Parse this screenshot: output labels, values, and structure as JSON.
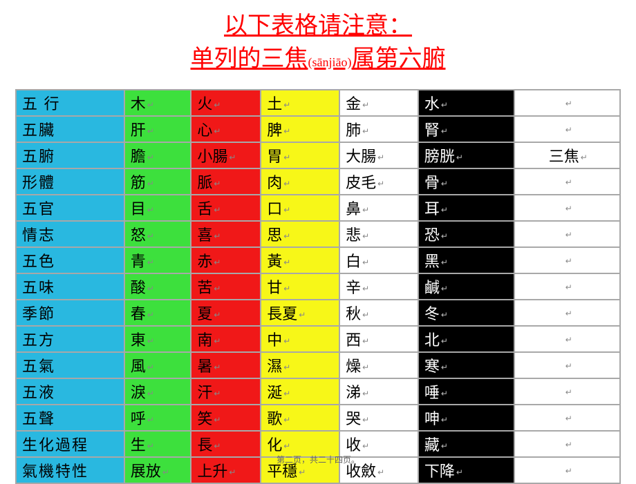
{
  "title": {
    "line1": "以下表格请注意：",
    "line2_pre": "单列的三焦",
    "line2_pinyin": "(sānjiāo)",
    "line2_post": "属第六腑"
  },
  "table": {
    "colors": {
      "label": "#29b8e0",
      "wood": "#3de03d",
      "fire": "#f01818",
      "earth": "#f7f718",
      "metal": "#ffffff",
      "water": "#000000",
      "extra": "#ffffff",
      "water_text": "#ffffff",
      "grid": "#a8a8a8"
    },
    "column_keys": [
      "label",
      "wood",
      "fire",
      "earth",
      "metal",
      "water",
      "extra"
    ],
    "rows": [
      {
        "label": "五 行",
        "wood": "木",
        "fire": "火",
        "earth": "土",
        "metal": "金",
        "water": "水",
        "extra": ""
      },
      {
        "label": "五臟",
        "wood": "肝",
        "fire": "心",
        "earth": "脾",
        "metal": "肺",
        "water": "腎",
        "extra": ""
      },
      {
        "label": "五腑",
        "wood": "膽",
        "fire": "小腸",
        "earth": "胃",
        "metal": "大腸",
        "water": "膀胱",
        "extra": "三焦"
      },
      {
        "label": "形體",
        "wood": "筋",
        "fire": "脈",
        "earth": "肉",
        "metal": "皮毛",
        "water": "骨",
        "extra": ""
      },
      {
        "label": "五官",
        "wood": "目",
        "fire": "舌",
        "earth": "口",
        "metal": "鼻",
        "water": "耳",
        "extra": ""
      },
      {
        "label": "情志",
        "wood": "怒",
        "fire": "喜",
        "earth": "思",
        "metal": "悲",
        "water": "恐",
        "extra": ""
      },
      {
        "label": "五色",
        "wood": "青",
        "fire": "赤",
        "earth": "黃",
        "metal": "白",
        "water": "黑",
        "extra": ""
      },
      {
        "label": "五味",
        "wood": "酸",
        "fire": "苦",
        "earth": "甘",
        "metal": "辛",
        "water": "鹹",
        "extra": ""
      },
      {
        "label": "季節",
        "wood": "春",
        "fire": "夏",
        "earth": "長夏",
        "metal": "秋",
        "water": "冬",
        "extra": ""
      },
      {
        "label": "五方",
        "wood": "東",
        "fire": "南",
        "earth": "中",
        "metal": "西",
        "water": "北",
        "extra": ""
      },
      {
        "label": "五氣",
        "wood": "風",
        "fire": "暑",
        "earth": "濕",
        "metal": "燥",
        "water": "寒",
        "extra": ""
      },
      {
        "label": "五液",
        "wood": "淚",
        "fire": "汗",
        "earth": "涎",
        "metal": "涕",
        "water": "唾",
        "extra": ""
      },
      {
        "label": "五聲",
        "wood": "呼",
        "fire": "笑",
        "earth": "歌",
        "metal": "哭",
        "water": "呻",
        "extra": ""
      },
      {
        "label": "生化過程",
        "wood": "生",
        "fire": "長",
        "earth": "化",
        "metal": "收",
        "water": "藏",
        "extra": ""
      },
      {
        "label": "氣機特性",
        "wood": "展放",
        "fire": "上升",
        "earth": "平穩",
        "metal": "收斂",
        "water": "下降",
        "extra": ""
      }
    ]
  },
  "footer": "第二页，共二十四页。",
  "marker_glyph": "↵"
}
